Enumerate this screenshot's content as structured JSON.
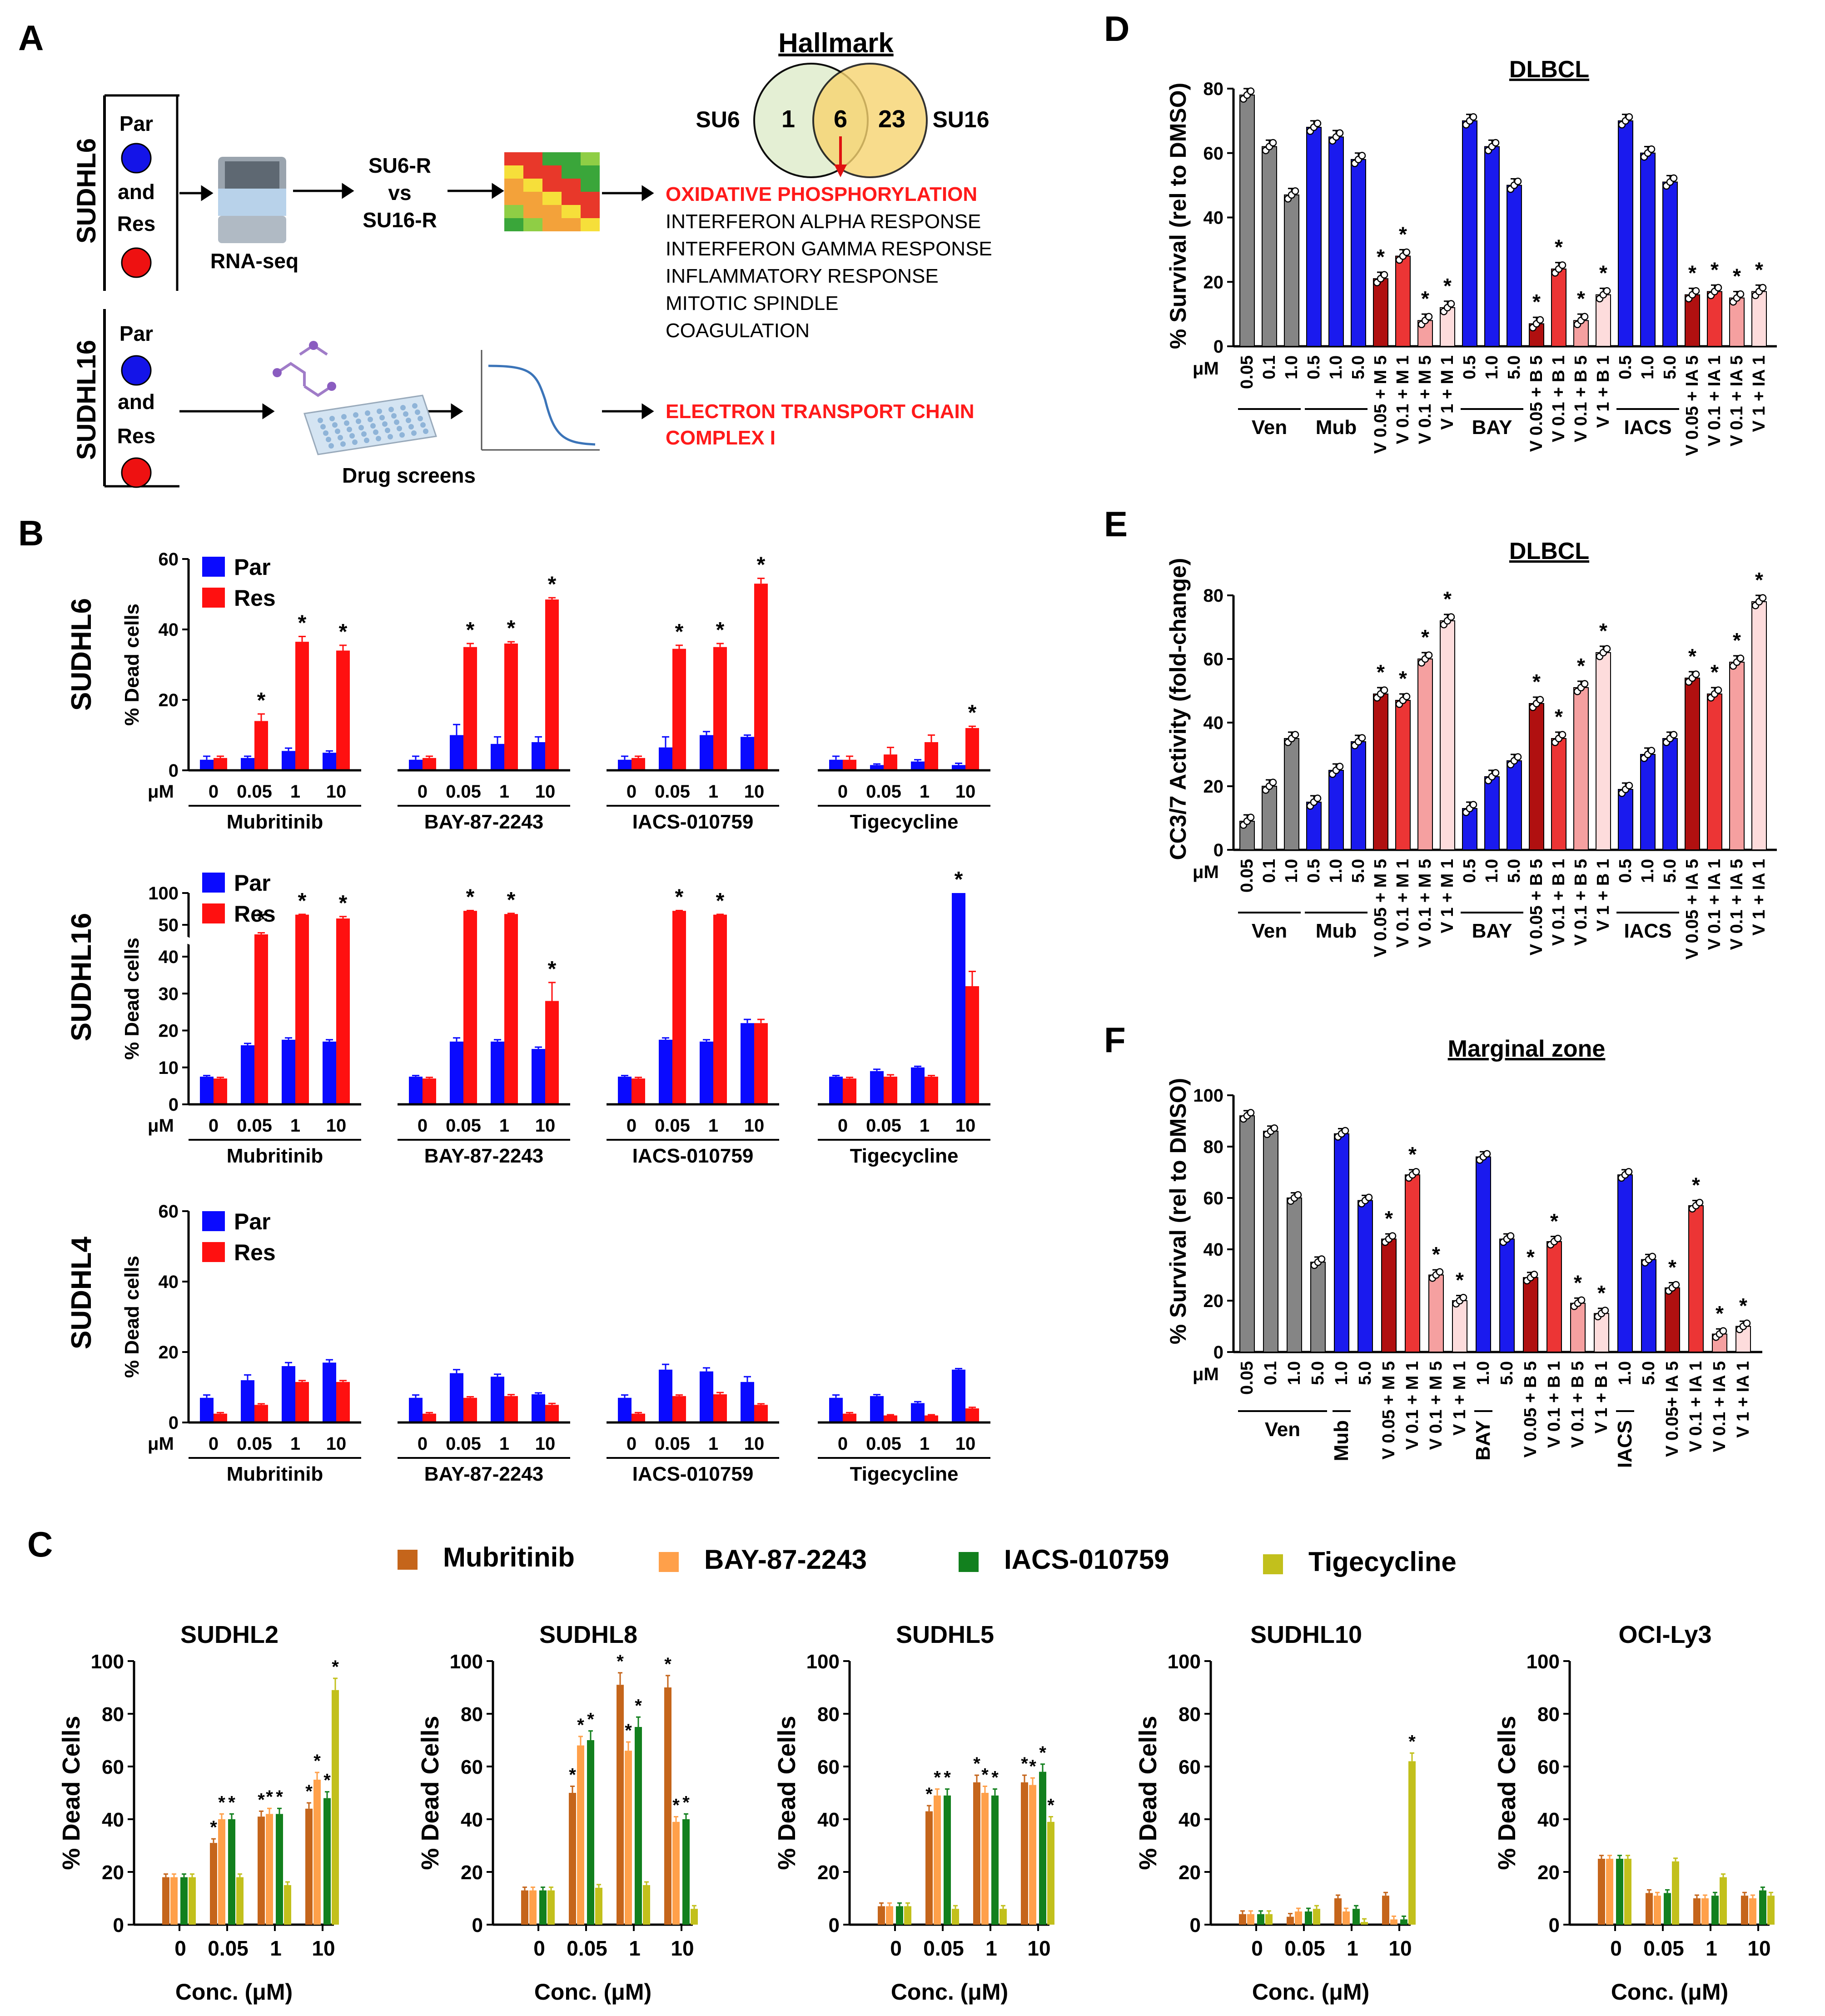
{
  "colors": {
    "par": "#0a0aff",
    "res": "#ff1010",
    "mub": "#c5651b",
    "bay": "#ffa04a",
    "iacs": "#12801e",
    "tige": "#c2c01c",
    "gray": "#858585",
    "blue": "#1a1aee",
    "dred": "#b01010",
    "red": "#ec3535",
    "pink": "#f5a0a0",
    "lpink": "#fddcdc"
  },
  "panelA": {
    "label": "A",
    "row1_name": "SUDHL6",
    "row2_name": "SUDHL16",
    "par": "Par",
    "and": "and",
    "res": "Res",
    "rnaseq": "RNA-seq",
    "compare": [
      "SU6-R",
      "vs",
      "SU16-R"
    ],
    "drug_screens": "Drug screens",
    "venn": {
      "title": "Hallmark",
      "left": "SU6",
      "right": "SU16",
      "left_n": "1",
      "both_n": "6",
      "right_n": "23"
    },
    "pathways_highlight": "OXIDATIVE PHOSPHORYLATION",
    "pathways": [
      "INTERFERON ALPHA RESPONSE",
      "INTERFERON GAMMA RESPONSE",
      "INFLAMMATORY RESPONSE",
      "MITOTIC SPINDLE",
      "COAGULATION"
    ],
    "etc": [
      "ELECTRON TRANSPORT CHAIN",
      "COMPLEX I"
    ]
  },
  "panelB": {
    "label": "B",
    "ylabel": "% Dead cells",
    "unit": "μM",
    "legend": [
      "Par",
      "Res"
    ],
    "doses": [
      "0",
      "0.05",
      "1",
      "10"
    ],
    "drugs": [
      "Mubritinib",
      "BAY-87-2243",
      "IACS-010759",
      "Tigecycline"
    ]
  },
  "panelC": {
    "label": "C",
    "legend": [
      "Mubritinib",
      "BAY-87-2243",
      "IACS-010759",
      "Tigecycline"
    ],
    "ylabel": "% Dead Cells",
    "xlabel": "Conc. (μM)",
    "doses": [
      "0",
      "0.05",
      "1",
      "10"
    ],
    "yticks": [
      "0",
      "20",
      "40",
      "60",
      "80",
      "100"
    ]
  },
  "panelD": {
    "label": "D",
    "title": "DLBCL",
    "ylabel": "% Survival (rel to DMSO)",
    "unit": "μM"
  },
  "panelE": {
    "label": "E",
    "title": "DLBCL",
    "ylabel": "CC3/7 Activity (fold-change)",
    "unit": "μM"
  },
  "panelF": {
    "label": "F",
    "title": "Marginal zone",
    "ylabel": "% Survival (rel to DMSO)",
    "unit": "μM"
  },
  "chart_data": [
    {
      "id": "B1",
      "type": "bar",
      "title": "SUDHL6",
      "ylim": [
        0,
        60
      ],
      "yticks": [
        0,
        20,
        40,
        60
      ],
      "categories": [
        "Mubritinib 0",
        "Mubritinib 0.05",
        "Mubritinib 1",
        "Mubritinib 10",
        "BAY-87-2243 0",
        "BAY-87-2243 0.05",
        "BAY-87-2243 1",
        "BAY-87-2243 10",
        "IACS-010759 0",
        "IACS-010759 0.05",
        "IACS-010759 1",
        "IACS-010759 10",
        "Tigecycline 0",
        "Tigecycline 0.05",
        "Tigecycline 1",
        "Tigecycline 10"
      ],
      "series": [
        {
          "name": "Par",
          "values": [
            3,
            3.5,
            5.5,
            5,
            3,
            10,
            7.5,
            8,
            3,
            6.5,
            10,
            9.5,
            3,
            1.5,
            2.5,
            1.5
          ],
          "err": [
            1,
            0.5,
            0.8,
            0.5,
            1,
            3,
            2,
            1.5,
            1,
            3,
            1,
            0.5,
            1,
            0.3,
            0.5,
            0.5
          ]
        },
        {
          "name": "Res",
          "values": [
            3.5,
            14,
            36.5,
            34,
            3.5,
            35,
            36,
            48.5,
            3.5,
            34.5,
            35,
            53,
            3,
            4.5,
            8,
            12
          ],
          "err": [
            0.5,
            2,
            1.5,
            1.5,
            0.5,
            1,
            0.5,
            0.5,
            0.5,
            1,
            1,
            1.5,
            1,
            2,
            2,
            0.5
          ]
        }
      ],
      "stars": [
        "",
        "Res",
        "Res",
        "Res",
        "",
        "Res",
        "Res",
        "Res",
        "",
        "Res",
        "Res",
        "Res",
        "",
        "",
        "",
        "Res"
      ]
    },
    {
      "id": "B2",
      "type": "bar",
      "title": "SUDHL16",
      "broken_axis": true,
      "yticks_low": [
        0,
        10,
        20,
        30,
        40
      ],
      "yticks_high": [
        50,
        100
      ],
      "categories": [
        "Mubritinib 0",
        "Mubritinib 0.05",
        "Mubritinib 1",
        "Mubritinib 10",
        "BAY-87-2243 0",
        "BAY-87-2243 0.05",
        "BAY-87-2243 1",
        "BAY-87-2243 10",
        "IACS-010759 0",
        "IACS-010759 0.05",
        "IACS-010759 1",
        "IACS-010759 10",
        "Tigecycline 0",
        "Tigecycline 0.05",
        "Tigecycline 1",
        "Tigecycline 10"
      ],
      "series": [
        {
          "name": "Par",
          "values": [
            7.5,
            16,
            17.5,
            17,
            7.5,
            17,
            17,
            15,
            7.5,
            17.5,
            17,
            22,
            7.5,
            9,
            10,
            100
          ],
          "err": [
            0.3,
            0.5,
            0.5,
            0.5,
            0.3,
            1,
            0.5,
            0.5,
            0.3,
            0.5,
            0.5,
            1,
            0.3,
            0.5,
            0.3,
            0
          ]
        },
        {
          "name": "Res",
          "values": [
            7,
            47,
            66,
            60,
            7,
            72,
            67,
            28,
            7,
            72,
            66,
            22,
            7,
            7.5,
            7.5,
            32
          ],
          "err": [
            0.3,
            0.5,
            0.5,
            3,
            0.3,
            0.5,
            1,
            5,
            0.3,
            0.5,
            0.5,
            1,
            0.3,
            0.5,
            0.3,
            4
          ]
        }
      ],
      "stars": [
        "",
        "Res",
        "Res",
        "Res",
        "",
        "Res",
        "Res",
        "Res",
        "",
        "Res",
        "Res",
        "",
        "",
        "",
        "",
        "Par"
      ]
    },
    {
      "id": "B3",
      "type": "bar",
      "title": "SUDHL4",
      "ylim": [
        0,
        60
      ],
      "yticks": [
        0,
        20,
        40,
        60
      ],
      "categories": [
        "Mubritinib 0",
        "Mubritinib 0.05",
        "Mubritinib 1",
        "Mubritinib 10",
        "BAY-87-2243 0",
        "BAY-87-2243 0.05",
        "BAY-87-2243 1",
        "BAY-87-2243 10",
        "IACS-010759 0",
        "IACS-010759 0.05",
        "IACS-010759 1",
        "IACS-010759 10",
        "Tigecycline 0",
        "Tigecycline 0.05",
        "Tigecycline 1",
        "Tigecycline 10"
      ],
      "series": [
        {
          "name": "Par",
          "values": [
            7,
            12,
            16,
            17,
            7,
            14,
            13,
            8,
            7,
            15,
            14.5,
            11.5,
            7,
            7.5,
            5.5,
            15
          ],
          "err": [
            0.8,
            1.5,
            1,
            0.8,
            0.8,
            1,
            0.7,
            0.4,
            0.8,
            1.5,
            1,
            1.5,
            0.8,
            0.4,
            0.4,
            0.3
          ]
        },
        {
          "name": "Res",
          "values": [
            2.5,
            5,
            11.5,
            11.5,
            2.5,
            7,
            7.5,
            5,
            2.5,
            7.5,
            8,
            5,
            2.5,
            2,
            2,
            4
          ],
          "err": [
            0.3,
            0.3,
            0.4,
            0.4,
            0.3,
            0.3,
            0.4,
            0.4,
            0.3,
            0.3,
            0.5,
            0.3,
            0.3,
            0.2,
            0.2,
            0.3
          ]
        }
      ],
      "stars": []
    },
    {
      "id": "C1",
      "type": "bar",
      "title": "SUDHL2",
      "ylim": [
        0,
        100
      ],
      "categories": [
        "0",
        "0.05",
        "1",
        "10"
      ],
      "series": [
        {
          "name": "Mubritinib",
          "values": [
            18,
            31,
            41,
            44
          ]
        },
        {
          "name": "BAY-87-2243",
          "values": [
            18,
            40,
            42,
            55
          ]
        },
        {
          "name": "IACS-010759",
          "values": [
            18,
            40,
            42,
            48
          ]
        },
        {
          "name": "Tigecycline",
          "values": [
            18,
            18,
            15,
            89
          ]
        }
      ]
    },
    {
      "id": "C2",
      "type": "bar",
      "title": "SUDHL8",
      "ylim": [
        0,
        100
      ],
      "categories": [
        "0",
        "0.05",
        "1",
        "10"
      ],
      "series": [
        {
          "name": "Mubritinib",
          "values": [
            13,
            50,
            91,
            90
          ]
        },
        {
          "name": "BAY-87-2243",
          "values": [
            13,
            68,
            66,
            39
          ]
        },
        {
          "name": "IACS-010759",
          "values": [
            13,
            70,
            75,
            40
          ]
        },
        {
          "name": "Tigecycline",
          "values": [
            13,
            14,
            15,
            6
          ]
        }
      ]
    },
    {
      "id": "C3",
      "type": "bar",
      "title": "SUDHL5",
      "ylim": [
        0,
        100
      ],
      "categories": [
        "0",
        "0.05",
        "1",
        "10"
      ],
      "series": [
        {
          "name": "Mubritinib",
          "values": [
            7,
            43,
            54,
            54
          ]
        },
        {
          "name": "BAY-87-2243",
          "values": [
            7,
            49,
            50,
            53
          ]
        },
        {
          "name": "IACS-010759",
          "values": [
            7,
            49,
            49,
            58
          ]
        },
        {
          "name": "Tigecycline",
          "values": [
            7,
            6,
            6,
            39
          ]
        }
      ]
    },
    {
      "id": "C4",
      "type": "bar",
      "title": "SUDHL10",
      "ylim": [
        0,
        100
      ],
      "categories": [
        "0",
        "0.05",
        "1",
        "10"
      ],
      "series": [
        {
          "name": "Mubritinib",
          "values": [
            4,
            3,
            10,
            11
          ]
        },
        {
          "name": "BAY-87-2243",
          "values": [
            4,
            5,
            5,
            2
          ]
        },
        {
          "name": "IACS-010759",
          "values": [
            4,
            5,
            6,
            2
          ]
        },
        {
          "name": "Tigecycline",
          "values": [
            4,
            6,
            1,
            62
          ]
        }
      ]
    },
    {
      "id": "C5",
      "type": "bar",
      "title": "OCI-Ly3",
      "ylim": [
        0,
        100
      ],
      "categories": [
        "0",
        "0.05",
        "1",
        "10"
      ],
      "series": [
        {
          "name": "Mubritinib",
          "values": [
            25,
            12,
            10,
            11
          ]
        },
        {
          "name": "BAY-87-2243",
          "values": [
            25,
            11,
            10,
            10
          ]
        },
        {
          "name": "IACS-010759",
          "values": [
            25,
            12,
            11,
            13
          ]
        },
        {
          "name": "Tigecycline",
          "values": [
            25,
            24,
            18,
            11
          ]
        }
      ]
    },
    {
      "id": "D",
      "type": "bar",
      "title": "DLBCL",
      "ylim": [
        0,
        80
      ],
      "yticks": [
        0,
        20,
        40,
        60,
        80
      ],
      "categories": [
        "0.05",
        "0.1",
        "1.0",
        "0.5",
        "1.0",
        "5.0",
        "V 0.05 + M 5",
        "V 0.1 + M 1",
        "V 0.1 + M 5",
        "V 1 + M 1",
        "0.5",
        "1.0",
        "5.0",
        "V 0.05 + B 5",
        "V 0.1 + B 1",
        "V 0.1 + B 5",
        "V 1 + B 1",
        "0.5",
        "1.0",
        "5.0",
        "V 0.05 + IA 5",
        "V 0.1 + IA 1",
        "V 0.1 + IA 5",
        "V 1 + IA 1"
      ],
      "values": [
        78,
        62,
        47,
        68,
        65,
        58,
        21,
        28,
        8,
        12,
        70,
        62,
        50,
        7,
        24,
        8,
        16,
        70,
        60,
        51,
        16,
        17,
        15,
        17
      ],
      "groups": [
        {
          "label": "Ven",
          "from": 0,
          "to": 2
        },
        {
          "label": "Mub",
          "from": 3,
          "to": 5
        },
        {
          "label": "BAY",
          "from": 10,
          "to": 12
        },
        {
          "label": "IACS",
          "from": 17,
          "to": 19
        }
      ]
    },
    {
      "id": "E",
      "type": "bar",
      "title": "DLBCL",
      "ylim": [
        0,
        80
      ],
      "yticks": [
        0,
        20,
        40,
        60,
        80
      ],
      "categories": [
        "0.05",
        "0.1",
        "1.0",
        "0.5",
        "1.0",
        "5.0",
        "V 0.05 + M 5",
        "V 0.1 + M 1",
        "V 0.1 + M 5",
        "V 1 + M 1",
        "0.5",
        "1.0",
        "5.0",
        "V 0.05 + B 5",
        "V 0.1 + B 1",
        "V 0.1 + B 5",
        "V 1 + B 1",
        "0.5",
        "1.0",
        "5.0",
        "V 0.05 + IA 5",
        "V 0.1 + IA 1",
        "V 0.1 + IA 5",
        "V 1 + IA 1"
      ],
      "values": [
        9,
        20,
        35,
        15,
        25,
        34,
        49,
        47,
        60,
        72,
        13,
        23,
        28,
        46,
        35,
        51,
        62,
        19,
        30,
        35,
        54,
        49,
        59,
        78
      ],
      "groups": [
        {
          "label": "Ven",
          "from": 0,
          "to": 2
        },
        {
          "label": "Mub",
          "from": 3,
          "to": 5
        },
        {
          "label": "BAY",
          "from": 10,
          "to": 12
        },
        {
          "label": "IACS",
          "from": 17,
          "to": 19
        }
      ]
    },
    {
      "id": "F",
      "type": "bar",
      "title": "Marginal zone",
      "ylim": [
        0,
        100
      ],
      "yticks": [
        0,
        20,
        40,
        60,
        80,
        100
      ],
      "categories": [
        "0.05",
        "0.1",
        "1.0",
        "5.0",
        "1.0",
        "5.0",
        "V 0.05 + M 5",
        "V 0.1 + M 1",
        "V 0.1 + M 5",
        "V 1 + M 1",
        "1.0",
        "5.0",
        "V 0.05 + B 5",
        "V 0.1 + B 1",
        "V 0.1 + B 5",
        "V 1 + B 1",
        "1.0",
        "5.0",
        "V 0.05+ IA 5",
        "V 0.1 + IA 1",
        "V 0.1 + IA 5",
        "V 1 + IA 1"
      ],
      "values": [
        92,
        86,
        60,
        35,
        85,
        59,
        44,
        69,
        30,
        20,
        76,
        44,
        29,
        43,
        19,
        15,
        69,
        36,
        25,
        57,
        7,
        10
      ],
      "groups": [
        {
          "label": "Ven",
          "from": 0,
          "to": 3
        },
        {
          "label": "Mub",
          "from": 4,
          "to": 4,
          "rot": true
        },
        {
          "label": "BAY",
          "from": 10,
          "to": 10,
          "rot": true
        },
        {
          "label": "IACS",
          "from": 16,
          "to": 16,
          "rot": true
        }
      ]
    }
  ]
}
